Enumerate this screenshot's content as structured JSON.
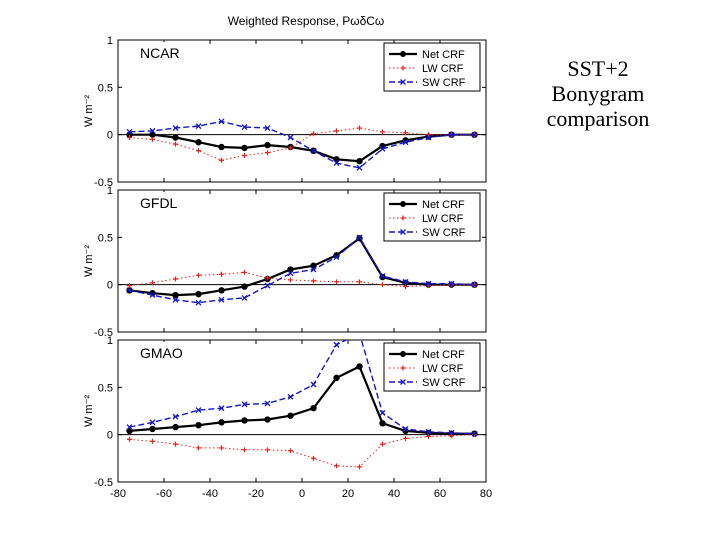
{
  "slide": {
    "title_lines": [
      "SST+2",
      "Bonygram",
      "comparison"
    ]
  },
  "figure": {
    "title": "Weighted Response,  PωδCω"
  },
  "colors": {
    "net": "#000000",
    "lw": "#e8221b",
    "sw": "#1616c8",
    "axis": "#000000"
  },
  "chart_data": [
    {
      "type": "line",
      "panel_label": "NCAR",
      "ylabel": "W m⁻²",
      "xlim": [
        -80,
        80
      ],
      "ylim": [
        -0.5,
        1
      ],
      "yticks": [
        "1",
        "0.5",
        "0",
        "-0.5"
      ],
      "xticks": [],
      "grid": false,
      "legend_position": "top-right",
      "x": [
        -75,
        -65,
        -55,
        -45,
        -35,
        -25,
        -15,
        -5,
        5,
        15,
        25,
        35,
        45,
        55,
        65,
        75
      ],
      "series": [
        {
          "name": "Net CRF",
          "style": "solid",
          "values": [
            0.0,
            0.0,
            -0.03,
            -0.08,
            -0.13,
            -0.14,
            -0.11,
            -0.13,
            -0.17,
            -0.26,
            -0.28,
            -0.12,
            -0.06,
            -0.02,
            0.0,
            0.0
          ]
        },
        {
          "name": "LW CRF",
          "style": "dotted",
          "values": [
            -0.03,
            -0.05,
            -0.1,
            -0.17,
            -0.27,
            -0.22,
            -0.19,
            -0.14,
            0.01,
            0.04,
            0.07,
            0.03,
            0.02,
            0.0,
            0.0,
            0.0
          ]
        },
        {
          "name": "SW CRF",
          "style": "dashed",
          "values": [
            0.03,
            0.04,
            0.07,
            0.09,
            0.14,
            0.08,
            0.07,
            -0.03,
            -0.17,
            -0.3,
            -0.35,
            -0.15,
            -0.08,
            -0.03,
            0.0,
            0.0
          ]
        }
      ]
    },
    {
      "type": "line",
      "panel_label": "GFDL",
      "ylabel": "W m⁻²",
      "xlim": [
        -80,
        80
      ],
      "ylim": [
        -0.5,
        1
      ],
      "yticks": [
        "1",
        "0.5",
        "0",
        "-0.5"
      ],
      "xticks": [],
      "grid": false,
      "legend_position": "top-right",
      "x": [
        -75,
        -65,
        -55,
        -45,
        -35,
        -25,
        -15,
        -5,
        5,
        15,
        25,
        35,
        45,
        55,
        65,
        75
      ],
      "series": [
        {
          "name": "Net CRF",
          "style": "solid",
          "values": [
            -0.06,
            -0.09,
            -0.11,
            -0.1,
            -0.06,
            -0.02,
            0.06,
            0.16,
            0.2,
            0.31,
            0.49,
            0.08,
            0.02,
            0.0,
            0.0,
            0.0
          ]
        },
        {
          "name": "LW CRF",
          "style": "dotted",
          "values": [
            -0.01,
            0.02,
            0.06,
            0.1,
            0.11,
            0.13,
            0.07,
            0.05,
            0.04,
            0.03,
            0.03,
            0.0,
            -0.02,
            -0.01,
            0.0,
            0.0
          ]
        },
        {
          "name": "SW CRF",
          "style": "dashed",
          "values": [
            -0.06,
            -0.11,
            -0.16,
            -0.19,
            -0.16,
            -0.14,
            -0.01,
            0.12,
            0.16,
            0.29,
            0.5,
            0.09,
            0.03,
            0.01,
            0.01,
            0.0
          ]
        }
      ]
    },
    {
      "type": "line",
      "panel_label": "GMAO",
      "ylabel": "W m⁻²",
      "xlim": [
        -80,
        80
      ],
      "ylim": [
        -0.5,
        1
      ],
      "yticks": [
        "1",
        "0.5",
        "0",
        "-0.5"
      ],
      "xticks": [
        "-80",
        "-60",
        "-40",
        "-20",
        "0",
        "20",
        "40",
        "60",
        "80"
      ],
      "grid": false,
      "legend_position": "top-right",
      "x": [
        -75,
        -65,
        -55,
        -45,
        -35,
        -25,
        -15,
        -5,
        5,
        15,
        25,
        35,
        45,
        55,
        65,
        75
      ],
      "series": [
        {
          "name": "Net CRF",
          "style": "solid",
          "values": [
            0.04,
            0.06,
            0.08,
            0.1,
            0.13,
            0.15,
            0.16,
            0.2,
            0.28,
            0.6,
            0.72,
            0.12,
            0.04,
            0.02,
            0.01,
            0.01
          ]
        },
        {
          "name": "LW CRF",
          "style": "dotted",
          "values": [
            -0.05,
            -0.07,
            -0.1,
            -0.14,
            -0.14,
            -0.16,
            -0.16,
            -0.17,
            -0.25,
            -0.33,
            -0.34,
            -0.1,
            -0.04,
            -0.02,
            -0.01,
            0.0
          ]
        },
        {
          "name": "SW CRF",
          "style": "dashed",
          "values": [
            0.08,
            0.13,
            0.19,
            0.26,
            0.28,
            0.32,
            0.33,
            0.4,
            0.53,
            0.95,
            1.07,
            0.23,
            0.06,
            0.03,
            0.02,
            0.01
          ]
        }
      ]
    }
  ]
}
